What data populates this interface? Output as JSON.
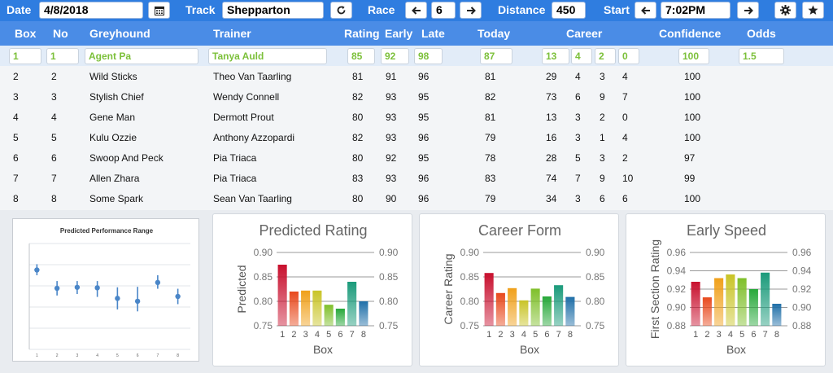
{
  "topbar": {
    "date_label": "Date",
    "date_value": "4/8/2018",
    "calendar_icon": "calendar-icon",
    "track_label": "Track",
    "track_value": "Shepparton",
    "refresh_icon": "refresh-icon",
    "race_label": "Race",
    "race_value": "6",
    "prev_icon": "arrow-left-icon",
    "next_icon": "arrow-right-icon",
    "distance_label": "Distance",
    "distance_value": "450",
    "start_label": "Start",
    "start_value": "7:02PM",
    "settings_icon": "gear-icon",
    "favorite_icon": "star-icon"
  },
  "table": {
    "headers": {
      "box": "Box",
      "no": "No",
      "greyhound": "Greyhound",
      "trainer": "Trainer",
      "rating": "Rating",
      "early": "Early",
      "late": "Late",
      "today": "Today",
      "career": "Career",
      "confidence": "Confidence",
      "odds": "Odds"
    },
    "selected": {
      "box": "1",
      "no": "1",
      "greyhound": "Agent Pa",
      "trainer": "Tanya Auld",
      "rating": "85",
      "early": "92",
      "late": "98",
      "today": "87",
      "career": [
        "13",
        "4",
        "2",
        "0"
      ],
      "confidence": "100",
      "odds": "1.5"
    },
    "rows": [
      {
        "box": "2",
        "no": "2",
        "greyhound": "Wild Sticks",
        "trainer": "Theo Van Taarling",
        "rating": "81",
        "early": "91",
        "late": "96",
        "today": "81",
        "career": [
          "29",
          "4",
          "3",
          "4"
        ],
        "confidence": "100"
      },
      {
        "box": "3",
        "no": "3",
        "greyhound": "Stylish Chief",
        "trainer": "Wendy Connell",
        "rating": "82",
        "early": "93",
        "late": "95",
        "today": "82",
        "career": [
          "73",
          "6",
          "9",
          "7"
        ],
        "confidence": "100"
      },
      {
        "box": "4",
        "no": "4",
        "greyhound": "Gene Man",
        "trainer": "Dermott Prout",
        "rating": "80",
        "early": "93",
        "late": "95",
        "today": "81",
        "career": [
          "13",
          "3",
          "2",
          "0"
        ],
        "confidence": "100"
      },
      {
        "box": "5",
        "no": "5",
        "greyhound": "Kulu Ozzie",
        "trainer": "Anthony Azzopardi",
        "rating": "82",
        "early": "93",
        "late": "96",
        "today": "79",
        "career": [
          "16",
          "3",
          "1",
          "4"
        ],
        "confidence": "100"
      },
      {
        "box": "6",
        "no": "6",
        "greyhound": "Swoop And Peck",
        "trainer": "Pia Triaca",
        "rating": "80",
        "early": "92",
        "late": "95",
        "today": "78",
        "career": [
          "28",
          "5",
          "3",
          "2"
        ],
        "confidence": "97"
      },
      {
        "box": "7",
        "no": "7",
        "greyhound": "Allen Zhara",
        "trainer": "Pia Triaca",
        "rating": "83",
        "early": "93",
        "late": "96",
        "today": "83",
        "career": [
          "74",
          "7",
          "9",
          "10"
        ],
        "confidence": "99"
      },
      {
        "box": "8",
        "no": "8",
        "greyhound": "Some Spark",
        "trainer": "Sean Van Taarling",
        "rating": "80",
        "early": "90",
        "late": "96",
        "today": "79",
        "career": [
          "34",
          "3",
          "6",
          "6"
        ],
        "confidence": "100"
      }
    ]
  },
  "colors": {
    "topbar": "#2f7de0",
    "header": "#4a8ce6",
    "selected_text": "#7cc03a",
    "bars": [
      "#c8102e",
      "#e8491d",
      "#f0a01a",
      "#c9c427",
      "#7fbf2a",
      "#27a83a",
      "#1a9a7a",
      "#1f6fa8"
    ]
  },
  "chart_data": [
    {
      "type": "scatter",
      "title": "Predicted Performance Range",
      "x": [
        1,
        2,
        3,
        4,
        5,
        6,
        7,
        8
      ],
      "values": [
        0.905,
        0.867,
        0.869,
        0.868,
        0.846,
        0.84,
        0.879,
        0.85
      ],
      "err_low": [
        0.894,
        0.852,
        0.855,
        0.849,
        0.823,
        0.819,
        0.866,
        0.834
      ],
      "err_high": [
        0.917,
        0.882,
        0.882,
        0.882,
        0.869,
        0.87,
        0.894,
        0.866
      ],
      "ylim": [
        0.74,
        0.96
      ]
    },
    {
      "type": "bar",
      "title": "Predicted Rating",
      "categories": [
        "1",
        "2",
        "3",
        "4",
        "5",
        "6",
        "7",
        "8"
      ],
      "values": [
        0.875,
        0.82,
        0.822,
        0.822,
        0.793,
        0.785,
        0.84,
        0.8
      ],
      "ylim": [
        0.75,
        0.9
      ],
      "yticks": [
        "0.90",
        "0.85",
        "0.80",
        "0.75"
      ],
      "xlabel": "Box",
      "ylabel": "Predicted"
    },
    {
      "type": "bar",
      "title": "Career Form",
      "categories": [
        "1",
        "2",
        "3",
        "4",
        "5",
        "6",
        "7",
        "8"
      ],
      "values": [
        0.858,
        0.817,
        0.827,
        0.802,
        0.826,
        0.81,
        0.833,
        0.809
      ],
      "ylim": [
        0.75,
        0.9
      ],
      "yticks": [
        "0.90",
        "0.85",
        "0.80",
        "0.75"
      ],
      "xlabel": "Box",
      "ylabel": "Career Rating"
    },
    {
      "type": "bar",
      "title": "Early Speed",
      "categories": [
        "1",
        "2",
        "3",
        "4",
        "5",
        "6",
        "7",
        "8"
      ],
      "values": [
        0.928,
        0.911,
        0.932,
        0.936,
        0.932,
        0.92,
        0.938,
        0.904
      ],
      "ylim": [
        0.88,
        0.96
      ],
      "yticks": [
        "0.96",
        "0.94",
        "0.92",
        "0.90",
        "0.88"
      ],
      "xlabel": "Box",
      "ylabel": "First Section Rating"
    }
  ]
}
